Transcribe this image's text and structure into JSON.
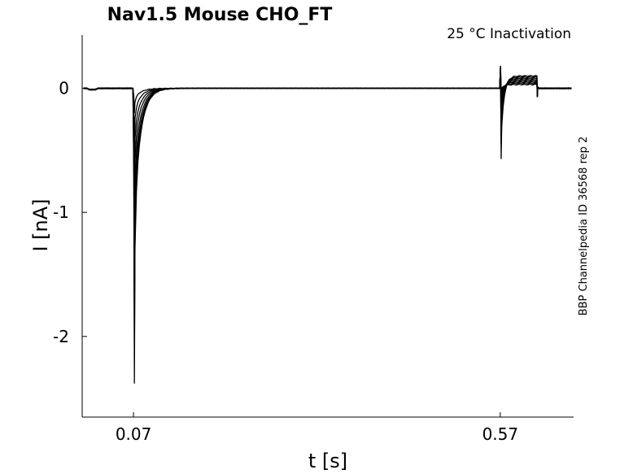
{
  "chart_data": {
    "type": "line",
    "title": "Nav1.5  Mouse  CHO_FT",
    "annotation": "25 °C  Inactivation",
    "side_label": "BBP Channelpedia ID 36568 rep 2",
    "xlabel": "t [s]",
    "ylabel": "I [nA]",
    "x_ticks": [
      0.07,
      0.57
    ],
    "x_tick_labels": [
      "0.07",
      "0.57"
    ],
    "y_ticks": [
      -2,
      -1,
      0
    ],
    "y_tick_labels": [
      "-2",
      "-1",
      "0"
    ],
    "xlim": [
      0.0,
      0.67
    ],
    "ylim": [
      -2.65,
      0.43
    ],
    "grid": false,
    "line_color": "#000000",
    "series": [
      {
        "peak": -2.38,
        "tail_dip": -0.57,
        "step_level": 0.1
      },
      {
        "peak": -2.15,
        "tail_dip": -0.45,
        "step_level": 0.09
      },
      {
        "peak": -1.85,
        "tail_dip": -0.35,
        "step_level": 0.08
      },
      {
        "peak": -1.5,
        "tail_dip": -0.25,
        "step_level": 0.07
      },
      {
        "peak": -1.1,
        "tail_dip": -0.17,
        "step_level": 0.06
      },
      {
        "peak": -0.75,
        "tail_dip": -0.1,
        "step_level": 0.05
      },
      {
        "peak": -0.45,
        "tail_dip": -0.05,
        "step_level": 0.04
      },
      {
        "peak": -0.2,
        "tail_dip": -0.02,
        "step_level": 0.03
      }
    ]
  }
}
